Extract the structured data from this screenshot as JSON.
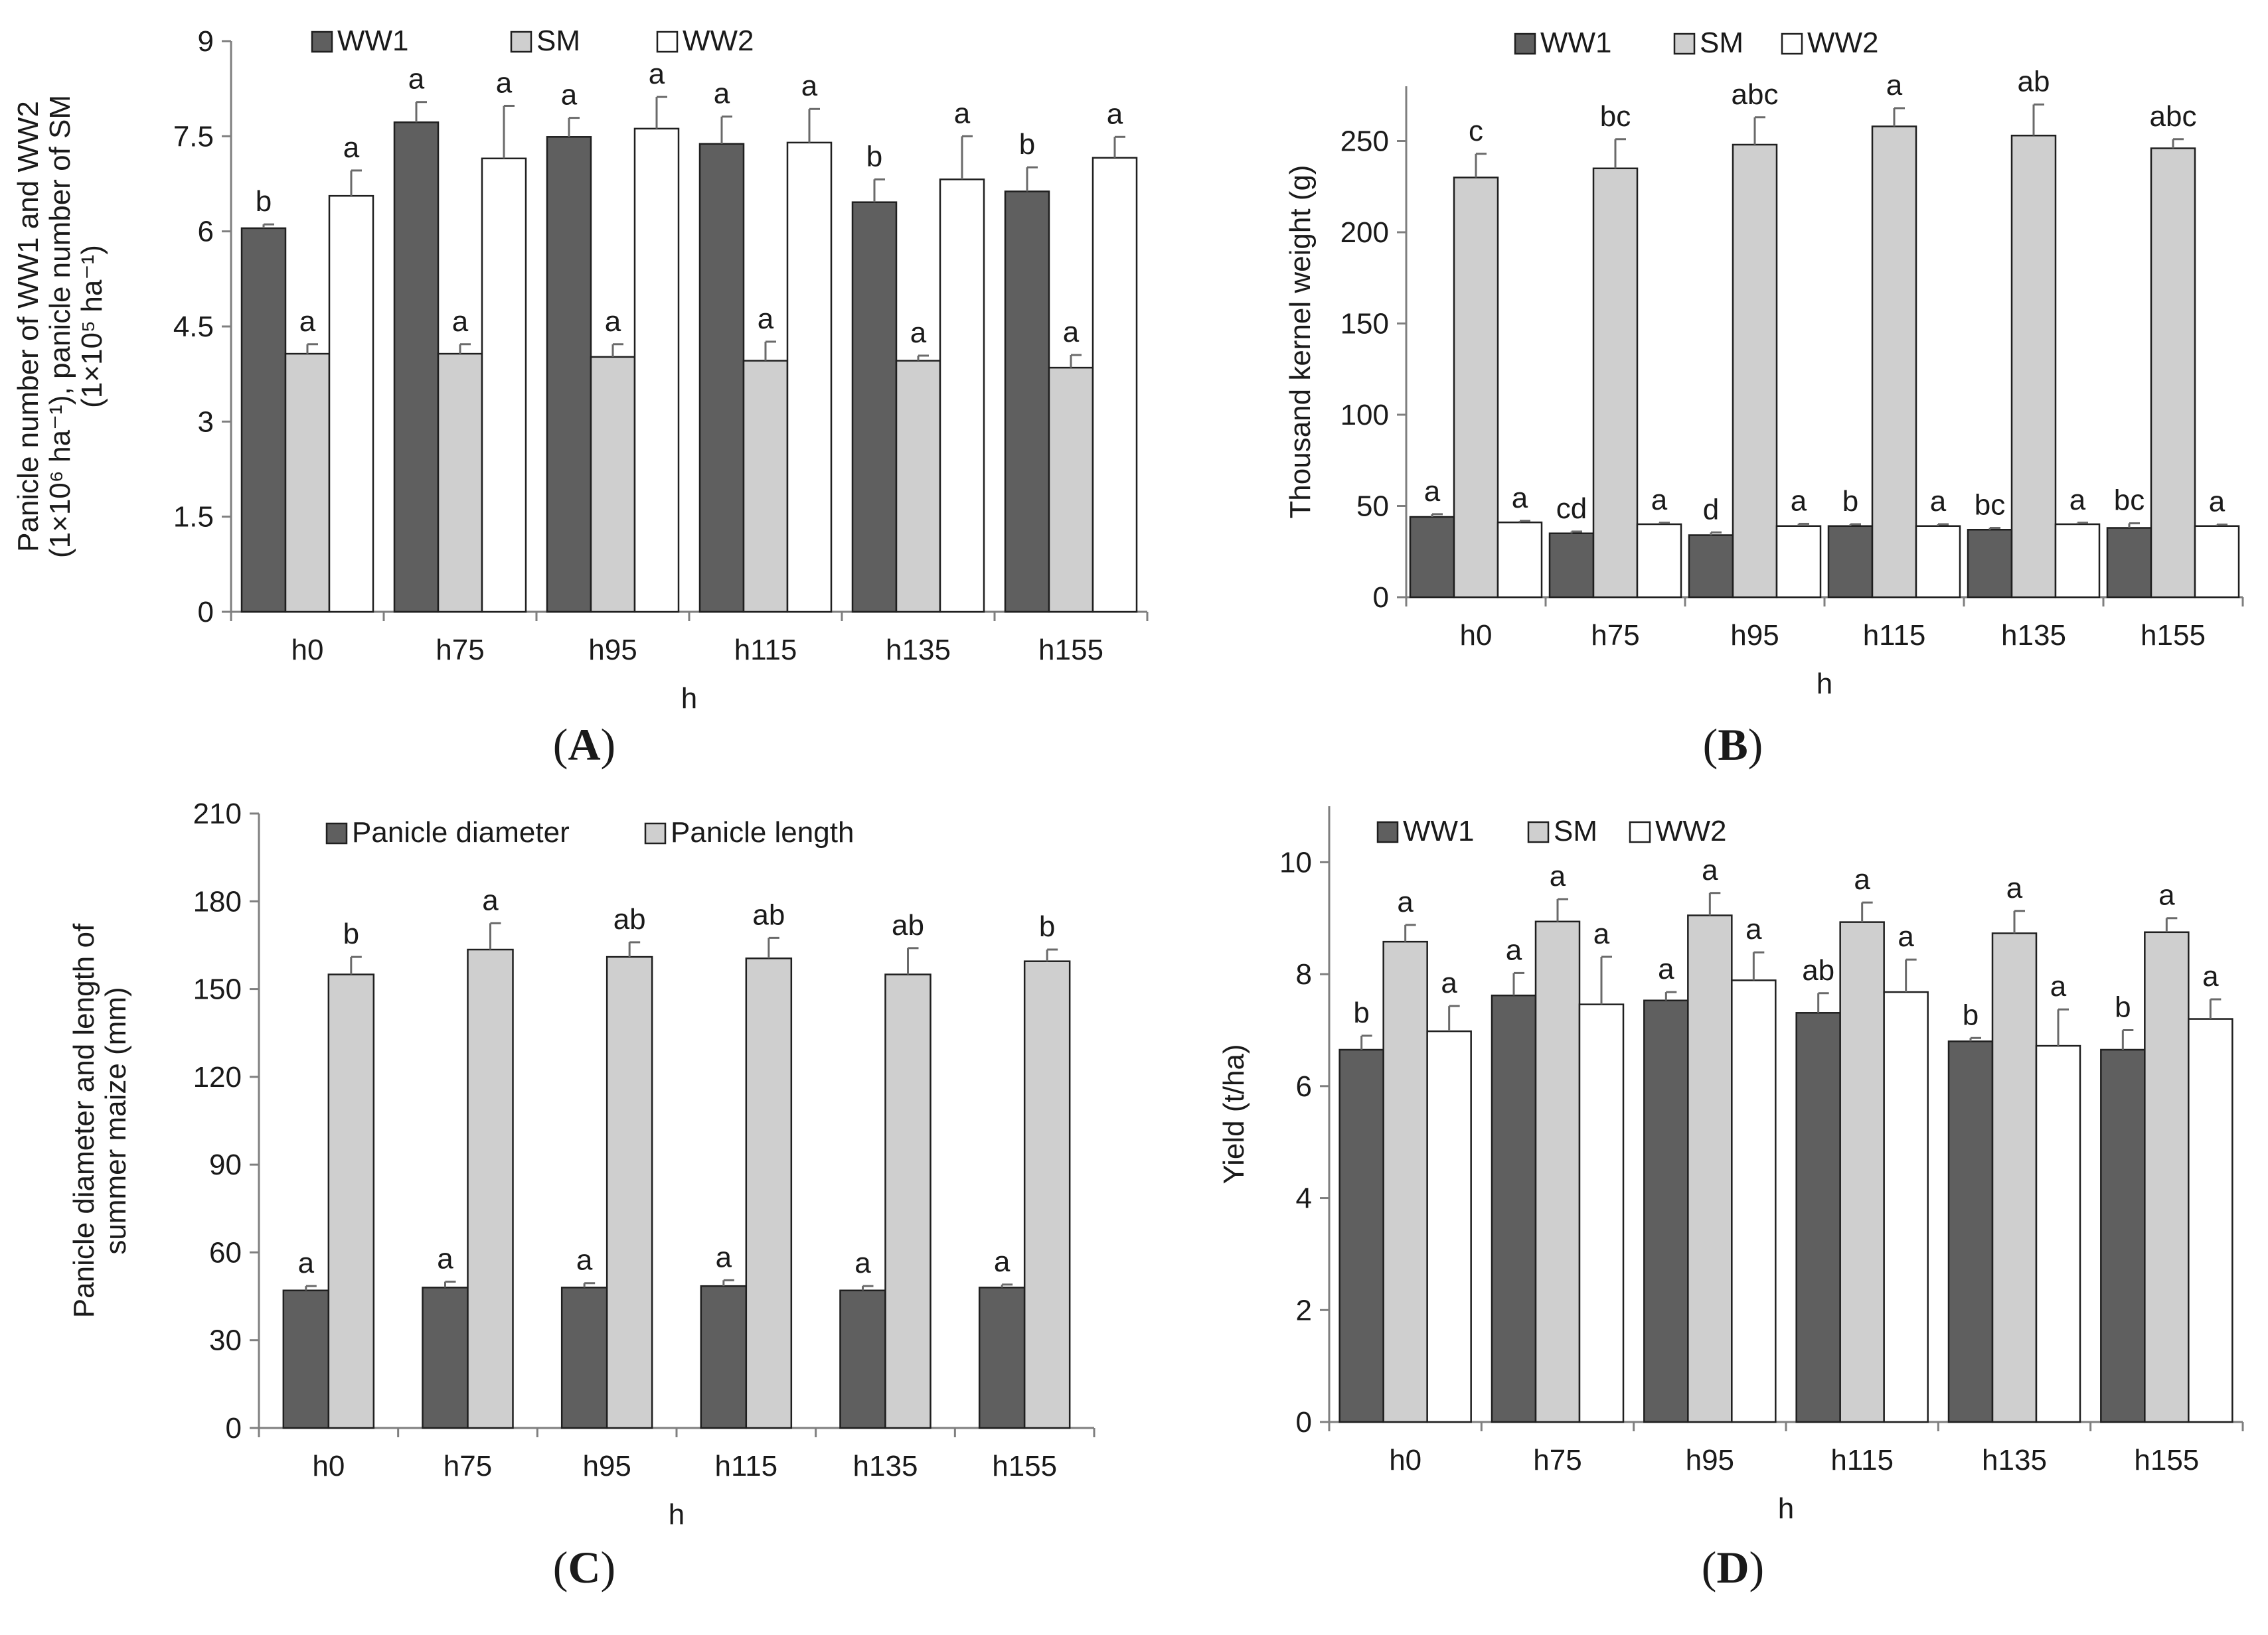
{
  "colors": {
    "WW1": "#5f5f5f",
    "SM": "#cfcfcf",
    "WW2": "#ffffff",
    "Panicle diameter": "#5f5f5f",
    "Panicle length": "#cfcfcf",
    "axis": "#7f7f7f",
    "bar_outline": "#1f1f1f"
  },
  "chart_data": [
    {
      "panel": "A",
      "caption": "A",
      "type": "bar",
      "title": "",
      "xlabel": "h",
      "ylabel_lines": [
        "Panicle number of WW1 and WW2",
        "(1×10⁶ ha⁻¹), panicle number of SM",
        "(1×10⁵ ha⁻¹)"
      ],
      "categories": [
        "h0",
        "h75",
        "h95",
        "h115",
        "h135",
        "h155"
      ],
      "ylim": [
        0,
        9
      ],
      "yticks": [
        0,
        1.5,
        3,
        4.5,
        6,
        7.5,
        9
      ],
      "ytick_labels": [
        "0",
        "1.5",
        "3",
        "4.5",
        "6",
        "7.5",
        "9"
      ],
      "legend": "top",
      "grid": false,
      "series": [
        {
          "name": "WW1",
          "values": [
            6.05,
            7.72,
            7.49,
            7.38,
            6.46,
            6.63
          ],
          "errors": [
            0.06,
            0.32,
            0.3,
            0.43,
            0.36,
            0.38
          ],
          "labels": [
            "b",
            "a",
            "a",
            "a",
            "b",
            "b"
          ]
        },
        {
          "name": "SM",
          "values": [
            4.07,
            4.07,
            4.02,
            3.96,
            3.96,
            3.85
          ],
          "errors": [
            0.15,
            0.15,
            0.2,
            0.3,
            0.08,
            0.2
          ],
          "labels": [
            "a",
            "a",
            "a",
            "a",
            "a",
            "a"
          ]
        },
        {
          "name": "WW2",
          "values": [
            6.56,
            7.15,
            7.62,
            7.4,
            6.82,
            7.16
          ],
          "errors": [
            0.4,
            0.83,
            0.5,
            0.53,
            0.68,
            0.33
          ],
          "labels": [
            "a",
            "a",
            "a",
            "a",
            "a",
            "a"
          ]
        }
      ]
    },
    {
      "panel": "B",
      "caption": "B",
      "type": "bar",
      "title": "",
      "xlabel": "h",
      "ylabel_lines": [
        "Thousand kernel weight (g)"
      ],
      "categories": [
        "h0",
        "h75",
        "h95",
        "h115",
        "h135",
        "h155"
      ],
      "ylim": [
        0,
        280
      ],
      "yticks": [
        0,
        50,
        100,
        150,
        200,
        250
      ],
      "ytick_labels": [
        "0",
        "50",
        "100",
        "150",
        "200",
        "250"
      ],
      "legend": "top",
      "grid": false,
      "series": [
        {
          "name": "WW1",
          "values": [
            44,
            35,
            34,
            39,
            37,
            38
          ],
          "errors": [
            1.5,
            1,
            1.5,
            1,
            1,
            2.5
          ],
          "labels": [
            "a",
            "cd",
            "d",
            "b",
            "bc",
            "bc"
          ]
        },
        {
          "name": "SM",
          "values": [
            230,
            235,
            248,
            258,
            253,
            246
          ],
          "errors": [
            13,
            16,
            15,
            10,
            17,
            5
          ],
          "labels": [
            "c",
            "bc",
            "abc",
            "a",
            "ab",
            "abc"
          ]
        },
        {
          "name": "WW2",
          "values": [
            41,
            40,
            39,
            39,
            40,
            39
          ],
          "errors": [
            0.8,
            0.8,
            1.2,
            1,
            0.8,
            0.8
          ],
          "labels": [
            "a",
            "a",
            "a",
            "a",
            "a",
            "a"
          ]
        }
      ]
    },
    {
      "panel": "C",
      "caption": "C",
      "type": "bar",
      "title": "",
      "xlabel": "h",
      "ylabel_lines": [
        "Panicle diameter and length of",
        "summer maize (mm)"
      ],
      "categories": [
        "h0",
        "h75",
        "h95",
        "h115",
        "h135",
        "h155"
      ],
      "ylim": [
        0,
        210
      ],
      "yticks": [
        0,
        30,
        60,
        90,
        120,
        150,
        180,
        210
      ],
      "ytick_labels": [
        "0",
        "30",
        "60",
        "90",
        "120",
        "150",
        "180",
        "210"
      ],
      "legend": "top",
      "grid": false,
      "series": [
        {
          "name": "Panicle diameter",
          "values": [
            47,
            48,
            48,
            48.5,
            47,
            48
          ],
          "errors": [
            1.5,
            2,
            1.5,
            2,
            1.5,
            1
          ],
          "labels": [
            "a",
            "a",
            "a",
            "a",
            "a",
            "a"
          ]
        },
        {
          "name": "Panicle length",
          "values": [
            155,
            163.5,
            161,
            160.5,
            155,
            159.5
          ],
          "errors": [
            6,
            9,
            5,
            7,
            9,
            4
          ],
          "labels": [
            "b",
            "a",
            "ab",
            "ab",
            "ab",
            "b"
          ]
        }
      ]
    },
    {
      "panel": "D",
      "caption": "D",
      "type": "bar",
      "title": "",
      "xlabel": "h",
      "ylabel_lines": [
        "Yield (t/ha)"
      ],
      "categories": [
        "h0",
        "h75",
        "h95",
        "h115",
        "h135",
        "h155"
      ],
      "ylim": [
        0,
        11
      ],
      "yticks": [
        0,
        2,
        4,
        6,
        8,
        10
      ],
      "ytick_labels": [
        "0",
        "2",
        "4",
        "6",
        "8",
        "10"
      ],
      "legend": "top",
      "grid": false,
      "series": [
        {
          "name": "WW1",
          "values": [
            6.65,
            7.62,
            7.53,
            7.31,
            6.8,
            6.65
          ],
          "errors": [
            0.25,
            0.4,
            0.15,
            0.35,
            0.06,
            0.35
          ],
          "labels": [
            "b",
            "a",
            "a",
            "ab",
            "b",
            "b"
          ]
        },
        {
          "name": "SM",
          "values": [
            8.58,
            8.94,
            9.05,
            8.93,
            8.73,
            8.75
          ],
          "errors": [
            0.3,
            0.4,
            0.4,
            0.35,
            0.4,
            0.25
          ],
          "labels": [
            "a",
            "a",
            "a",
            "a",
            "a",
            "a"
          ]
        },
        {
          "name": "WW2",
          "values": [
            6.98,
            7.46,
            7.89,
            7.68,
            6.72,
            7.2
          ],
          "errors": [
            0.45,
            0.85,
            0.5,
            0.58,
            0.65,
            0.35
          ],
          "labels": [
            "a",
            "a",
            "a",
            "a",
            "a",
            "a"
          ]
        }
      ]
    }
  ]
}
